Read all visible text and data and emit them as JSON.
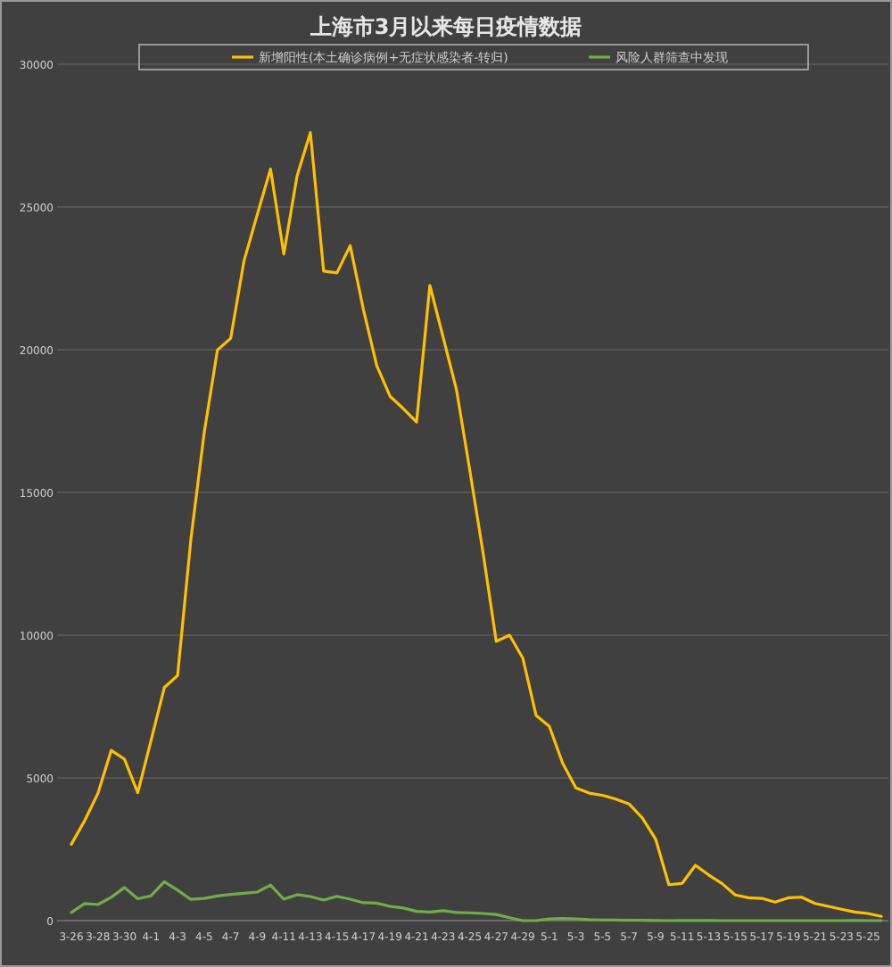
{
  "chart_data": {
    "type": "line",
    "title": "上海市3月以来每日疫情数据",
    "categories": [
      "3-26",
      null,
      "3-28",
      null,
      "3-30",
      null,
      "4-1",
      null,
      "4-3",
      null,
      "4-5",
      null,
      "4-7",
      null,
      "4-9",
      null,
      "4-11",
      null,
      "4-13",
      null,
      "4-15",
      null,
      "4-17",
      null,
      "4-19",
      null,
      "4-21",
      null,
      "4-23",
      null,
      "4-25",
      null,
      "4-27",
      null,
      "4-29",
      null,
      "5-1",
      null,
      "5-3",
      null,
      "5-5",
      null,
      "5-7",
      null,
      "5-9",
      null,
      "5-11",
      null,
      "5-13",
      null,
      "5-15",
      null,
      "5-17",
      null,
      "5-19",
      null,
      "5-21",
      null,
      "5-23",
      null,
      "5-25",
      null
    ],
    "series": [
      {
        "name": "新增阳性(本土确诊病例+无症状感染者-转归)",
        "color": "#ffc000",
        "values": [
          2676,
          3500,
          4456,
          5964,
          5657,
          4482,
          6309,
          8163,
          8585,
          13350,
          17077,
          19987,
          20399,
          23104,
          24732,
          26330,
          23349,
          26087,
          27605,
          22755,
          22691,
          23643,
          21395,
          19442,
          18368,
          17936,
          17466,
          22250,
          20437,
          18609,
          15800,
          12909,
          9780,
          9999,
          9196,
          7189,
          6804,
          5514,
          4651,
          4466,
          4390,
          4260,
          4087,
          3600,
          2858,
          1258,
          1305,
          1939,
          1600,
          1300,
          900,
          800,
          780,
          650,
          800,
          820,
          600,
          500,
          400,
          300,
          250,
          150
        ]
      },
      {
        "name": "风险人群筛查中发现",
        "color": "#70ad47",
        "values": [
          285,
          596,
          562,
          816,
          1160,
          766,
          869,
          1364,
          1068,
          744,
          777,
          865,
          917,
          957,
          1000,
          1246,
          750,
          908,
          843,
          720,
          851,
          750,
          626,
          613,
          500,
          441,
          323,
          300,
          349,
          286,
          273,
          250,
          213,
          102,
          0,
          0,
          58,
          73,
          63,
          34,
          23,
          18,
          11,
          9,
          5,
          0,
          2,
          4,
          1,
          0,
          0,
          0,
          0,
          0,
          0,
          0,
          0,
          0,
          0,
          1,
          0,
          0
        ]
      }
    ],
    "ylim": [
      0,
      30000
    ],
    "yticks": [
      0,
      5000,
      10000,
      15000,
      20000,
      25000,
      30000
    ],
    "grid": "y",
    "legend": "top",
    "marker": "none",
    "line_style": "solid"
  }
}
